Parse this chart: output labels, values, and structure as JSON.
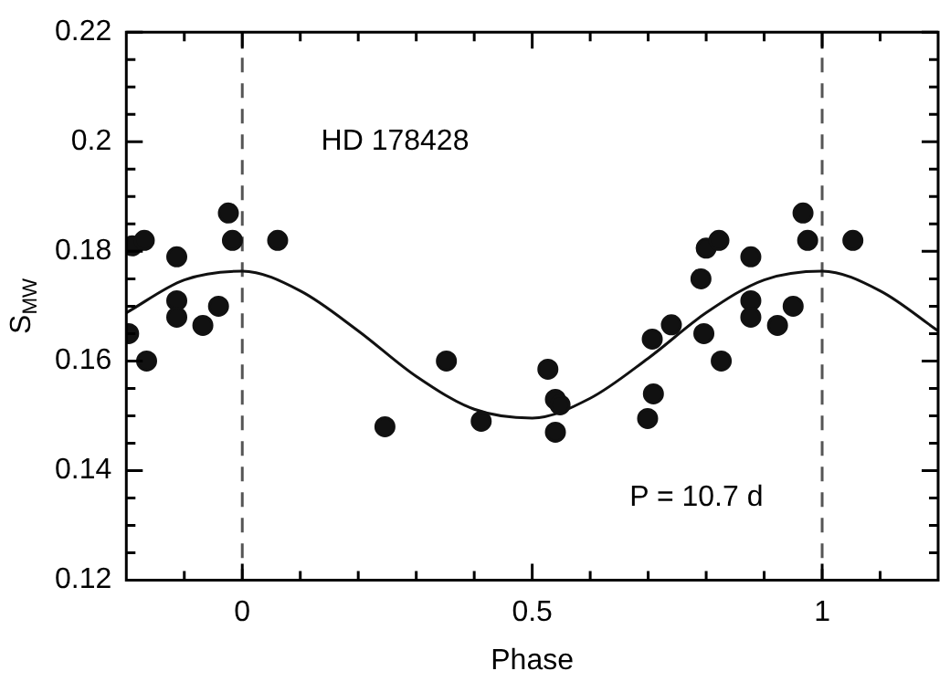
{
  "chart_data": {
    "type": "scatter",
    "xlabel": "Phase",
    "ylabel": "S$_{MW}$",
    "xlim": [
      -0.2,
      1.2
    ],
    "ylim": [
      0.12,
      0.22
    ],
    "xticks": [
      {
        "value": -0.1,
        "label": null
      },
      0,
      {
        "value": 0.1,
        "label": null
      },
      {
        "value": 0.2,
        "label": null
      },
      {
        "value": 0.3,
        "label": null
      },
      {
        "value": 0.4,
        "label": null
      },
      0.5,
      {
        "value": 0.6,
        "label": null
      },
      {
        "value": 0.7,
        "label": null
      },
      {
        "value": 0.8,
        "label": null
      },
      {
        "value": 0.9,
        "label": null
      },
      1,
      {
        "value": 1.1,
        "label": null
      }
    ],
    "yticks": [
      0.12,
      {
        "value": 0.125,
        "label": null
      },
      {
        "value": 0.13,
        "label": null
      },
      {
        "value": 0.135,
        "label": null
      },
      0.14,
      {
        "value": 0.145,
        "label": null
      },
      {
        "value": 0.15,
        "label": null
      },
      {
        "value": 0.155,
        "label": null
      },
      0.16,
      {
        "value": 0.165,
        "label": null
      },
      {
        "value": 0.17,
        "label": null
      },
      {
        "value": 0.175,
        "label": null
      },
      0.18,
      {
        "value": 0.185,
        "label": null
      },
      {
        "value": 0.19,
        "label": null
      },
      {
        "value": 0.195,
        "label": null
      },
      0.2,
      {
        "value": 0.205,
        "label": null
      },
      {
        "value": 0.21,
        "label": null
      },
      {
        "value": 0.215,
        "label": null
      },
      0.22
    ],
    "grid": false,
    "legend": false,
    "annotations": [
      "HD 178428",
      "P = 10.7 d"
    ],
    "ref_lines": [
      {
        "axis": "x",
        "value": 0,
        "color": "#555555",
        "line_style": "dashed"
      },
      {
        "axis": "x",
        "value": 1,
        "color": "#555555",
        "line_style": "dashed"
      }
    ],
    "series": [
      {
        "type": "scatter",
        "color": "#111111",
        "marker": "circle",
        "x": [
          -0.196,
          -0.19,
          -0.169,
          -0.165,
          -0.113,
          -0.113,
          -0.113,
          -0.068,
          -0.041,
          -0.024,
          -0.017,
          0.061,
          0.246,
          0.352,
          0.412,
          0.527,
          0.54,
          0.548,
          0.54,
          0.699,
          0.709,
          0.707,
          0.74,
          0.791,
          0.796,
          0.8,
          0.822,
          0.826,
          0.877,
          0.877,
          0.877,
          0.923,
          0.95,
          0.967,
          0.975,
          1.053
        ],
        "values": [
          0.165,
          0.181,
          0.182,
          0.16,
          0.179,
          0.171,
          0.168,
          0.1665,
          0.17,
          0.187,
          0.182,
          0.182,
          0.148,
          0.16,
          0.149,
          0.1585,
          0.153,
          0.152,
          0.147,
          0.1495,
          0.154,
          0.164,
          0.1666,
          0.175,
          0.165,
          0.1806,
          0.182,
          0.16,
          0.179,
          0.171,
          0.168,
          0.1665,
          0.17,
          0.187,
          0.182,
          0.182
        ]
      },
      {
        "type": "line",
        "color": "#111111",
        "marker": "none",
        "x": [
          -0.2,
          -0.1,
          0,
          0.1,
          0.2,
          0.3,
          0.4,
          0.5,
          0.6,
          0.7,
          0.8,
          0.9,
          1,
          1.1,
          1.2
        ],
        "values": [
          0.1688,
          0.1748,
          0.1764,
          0.1728,
          0.1655,
          0.1572,
          0.1512,
          0.1496,
          0.1532,
          0.1605,
          0.1688,
          0.1748,
          0.1764,
          0.1728,
          0.1655
        ]
      }
    ]
  }
}
